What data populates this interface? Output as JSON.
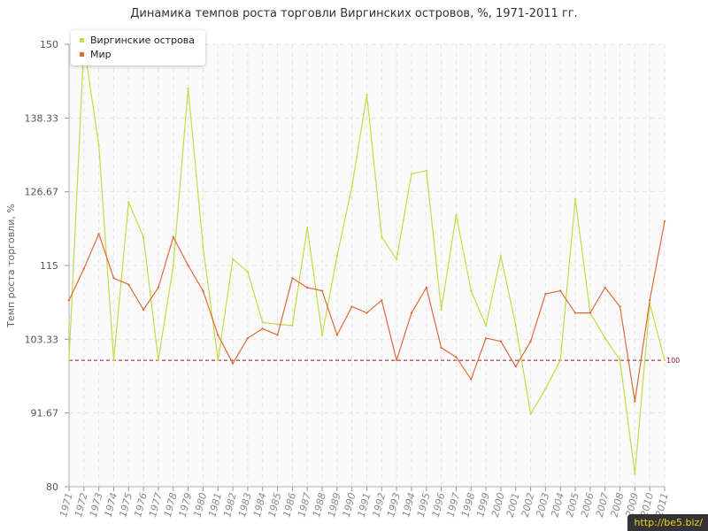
{
  "chart_data": {
    "type": "line",
    "title": "Динамика темпов роста торговли Виргинских островов, %, 1971-2011 гг.",
    "ylabel": "Темп роста торговли, %",
    "xlabel": "",
    "ylim": [
      80,
      150
    ],
    "yticks": [
      "80",
      "91.67",
      "103.33",
      "115",
      "126.67",
      "138.33",
      "150"
    ],
    "reference_line": {
      "value": 100,
      "label": "100"
    },
    "legend_position": "top-left",
    "grid": true,
    "x": [
      "1971",
      "1972",
      "1973",
      "1974",
      "1975",
      "1976",
      "1977",
      "1978",
      "1979",
      "1980",
      "1981",
      "1982",
      "1983",
      "1984",
      "1985",
      "1986",
      "1987",
      "1988",
      "1989",
      "1990",
      "1991",
      "1992",
      "1993",
      "1994",
      "1995",
      "1996",
      "1997",
      "1998",
      "1999",
      "2000",
      "2001",
      "2002",
      "2003",
      "2004",
      "2005",
      "2006",
      "2007",
      "2008",
      "2009",
      "2010",
      "2011"
    ],
    "series": [
      {
        "name": "Виргинские острова",
        "color": "#c3dc47",
        "values": [
          100,
          150,
          134,
          100,
          125,
          119.5,
          100,
          115,
          143,
          118,
          100,
          116,
          114,
          106,
          105.7,
          105.5,
          121,
          104,
          116.5,
          127.5,
          142,
          119.5,
          116,
          129.5,
          130,
          108,
          123,
          111,
          105.5,
          116.5,
          105.5,
          91.5,
          95.5,
          100,
          125.5,
          107.5,
          103.5,
          100,
          82,
          109,
          100
        ]
      },
      {
        "name": "Мир",
        "color": "#dd6a3b",
        "values": [
          109.5,
          114.5,
          120,
          113,
          112,
          108,
          111.5,
          119.5,
          115,
          111,
          104,
          99.5,
          103.5,
          105,
          104,
          113,
          111.5,
          111,
          104,
          108.5,
          107.5,
          109.5,
          100,
          107.5,
          111.5,
          102,
          100.5,
          97,
          103.5,
          103,
          99,
          103,
          110.5,
          111,
          107.5,
          107.5,
          111.5,
          108.5,
          93.5,
          109.5,
          122
        ]
      }
    ]
  },
  "watermark": "http://be5.biz/"
}
